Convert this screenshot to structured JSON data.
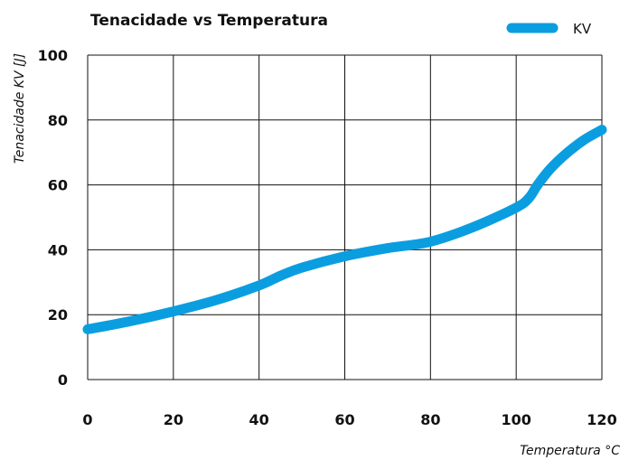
{
  "chart_data": {
    "type": "line",
    "title": "Tenacidade vs Temperatura",
    "xlabel": "Temperatura °C",
    "ylabel": "Tenacidade KV [J]",
    "xlim": [
      0,
      120
    ],
    "ylim": [
      0,
      100
    ],
    "x_ticks": [
      "0",
      "20",
      "40",
      "60",
      "80",
      "100",
      "120"
    ],
    "y_ticks": [
      "0",
      "20",
      "40",
      "60",
      "80",
      "100"
    ],
    "grid": true,
    "legend_position": "top-right",
    "colors": {
      "series": "#0a9ee0",
      "grid": "#111111",
      "text": "#111111"
    },
    "series": [
      {
        "name": "KV",
        "x": [
          0,
          10,
          20,
          30,
          40,
          45,
          50,
          60,
          70,
          80,
          90,
          100,
          103,
          105,
          108,
          112,
          116,
          120
        ],
        "y": [
          15.5,
          18,
          21,
          24.5,
          29,
          32,
          34.5,
          38,
          40.5,
          42.5,
          47,
          53,
          56,
          60,
          65,
          70,
          74,
          77
        ]
      }
    ]
  }
}
